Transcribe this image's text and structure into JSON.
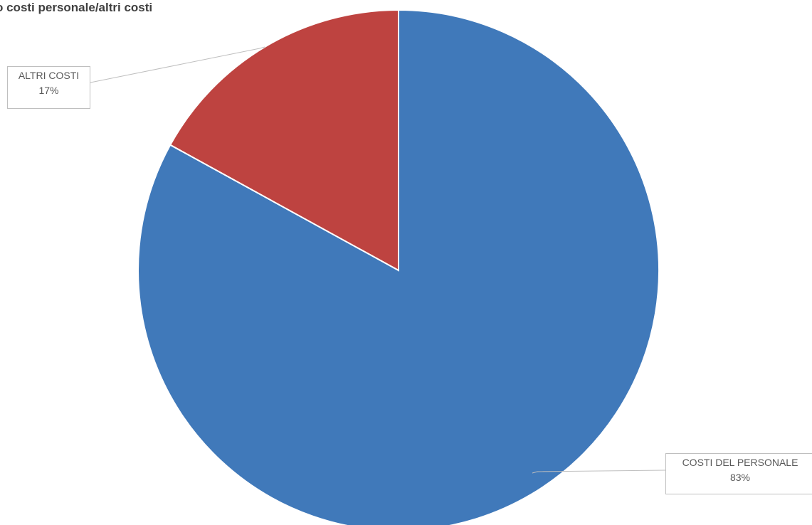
{
  "chart_data": {
    "type": "pie",
    "title": "o costi personale/altri costi",
    "slices": [
      {
        "label": "COSTI DEL PERSONALE",
        "value": 83,
        "display": "83%",
        "color": "#4079BA"
      },
      {
        "label": "ALTRI COSTI",
        "value": 17,
        "display": "17%",
        "color": "#BE4340"
      }
    ],
    "legend": "none",
    "start_angle": "12 o'clock",
    "direction": "clockwise"
  }
}
